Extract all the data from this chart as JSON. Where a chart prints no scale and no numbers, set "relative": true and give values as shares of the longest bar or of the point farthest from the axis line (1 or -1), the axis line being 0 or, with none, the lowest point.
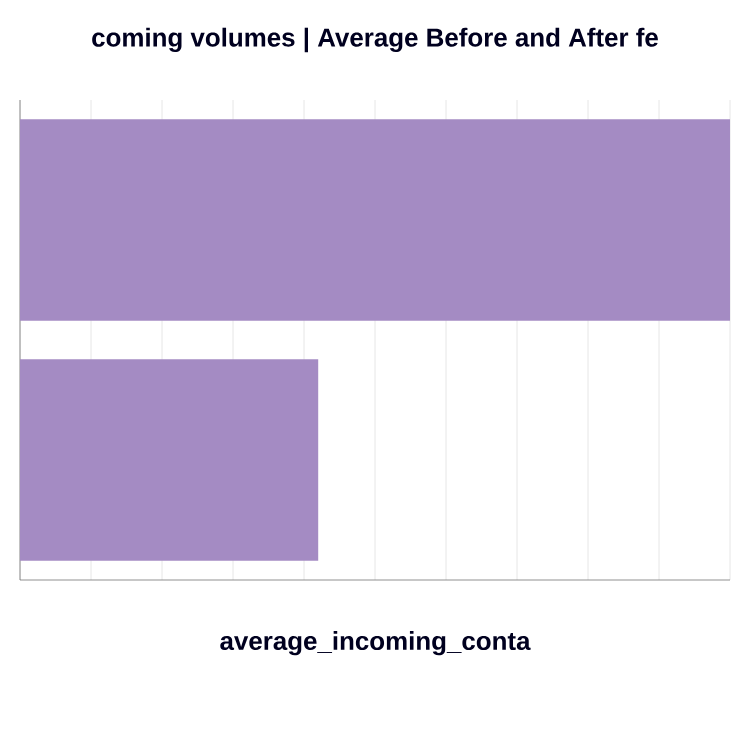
{
  "chart_data": {
    "type": "bar",
    "orientation": "horizontal",
    "relative": true,
    "title": "coming volumes | Average Before and After fe",
    "xlabel": "average_incoming_conta",
    "categories": [
      null,
      null
    ],
    "values": [
      1,
      0.42
    ],
    "color": "#a48bc3",
    "grid": "x"
  }
}
